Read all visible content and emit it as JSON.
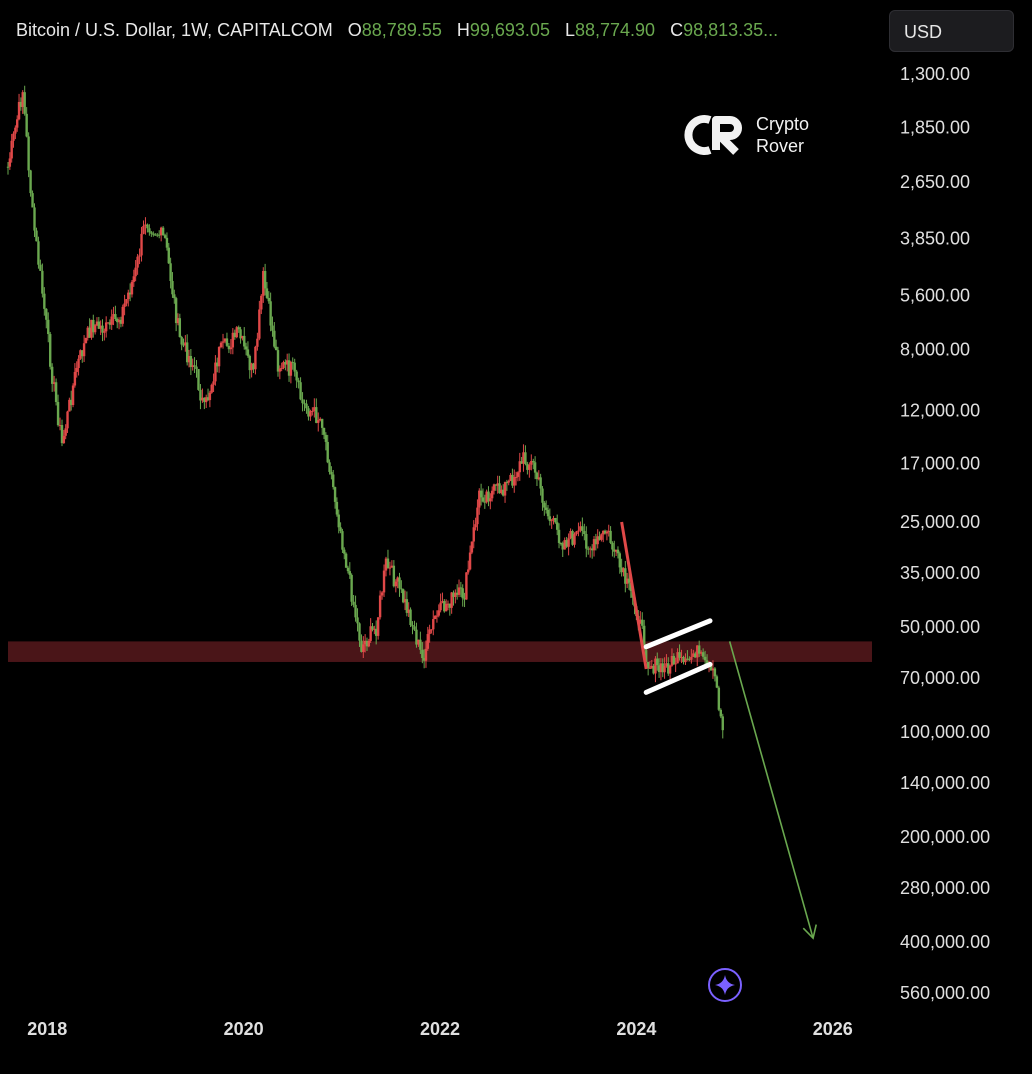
{
  "header": {
    "symbol": "Bitcoin / U.S. Dollar, 1W, CAPITALCOM",
    "open_label": "O",
    "open_value": "88,789.55",
    "high_label": "H",
    "high_value": "99,693.05",
    "low_label": "L",
    "low_value": "88,774.90",
    "close_label": "C",
    "close_value": "98,813.35..."
  },
  "currency_button": "USD",
  "watermark": {
    "line1": "Crypto",
    "line2": "Rover"
  },
  "colors": {
    "up": "#6aa84f",
    "down": "#e04848",
    "zone": "#4a1518",
    "arrow": "#6aa84f",
    "flag": "#ffffff"
  },
  "chart_data": {
    "type": "line",
    "x_axis": {
      "ticks": [
        "2018",
        "2020",
        "2022",
        "2024",
        "2026"
      ],
      "range": [
        2017.6,
        2026.4
      ]
    },
    "y_axis": {
      "scale": "log",
      "inverted": true,
      "ticks": [
        "1,300.00",
        "1,850.00",
        "2,650.00",
        "3,850.00",
        "5,600.00",
        "8,000.00",
        "12,000.00",
        "17,000.00",
        "25,000.00",
        "35,000.00",
        "50,000.00",
        "70,000.00",
        "100,000.00",
        "140,000.00",
        "200,000.00",
        "280,000.00",
        "400,000.00",
        "560,000.00"
      ],
      "range": [
        1300,
        560000
      ]
    },
    "series": [
      {
        "values": [
          [
            2017.6,
            2400
          ],
          [
            2017.75,
            1450
          ],
          [
            2017.85,
            3300
          ],
          [
            2017.95,
            5500
          ],
          [
            2018.05,
            9500
          ],
          [
            2018.15,
            15000
          ],
          [
            2018.3,
            9000
          ],
          [
            2018.45,
            6800
          ],
          [
            2018.6,
            7000
          ],
          [
            2018.75,
            6400
          ],
          [
            2018.9,
            4800
          ],
          [
            2019.0,
            3400
          ],
          [
            2019.2,
            3900
          ],
          [
            2019.35,
            7500
          ],
          [
            2019.5,
            9000
          ],
          [
            2019.6,
            12000
          ],
          [
            2019.75,
            8200
          ],
          [
            2019.95,
            7200
          ],
          [
            2020.1,
            9500
          ],
          [
            2020.2,
            5000
          ],
          [
            2020.35,
            8800
          ],
          [
            2020.5,
            9200
          ],
          [
            2020.6,
            11500
          ],
          [
            2020.8,
            12800
          ],
          [
            2020.95,
            23000
          ],
          [
            2021.1,
            40000
          ],
          [
            2021.2,
            57000
          ],
          [
            2021.35,
            50000
          ],
          [
            2021.45,
            33000
          ],
          [
            2021.55,
            37000
          ],
          [
            2021.7,
            47000
          ],
          [
            2021.82,
            62000
          ],
          [
            2021.95,
            47000
          ],
          [
            2022.1,
            42000
          ],
          [
            2022.25,
            40000
          ],
          [
            2022.4,
            21000
          ],
          [
            2022.55,
            20500
          ],
          [
            2022.7,
            19500
          ],
          [
            2022.85,
            16500
          ],
          [
            2022.95,
            17200
          ],
          [
            2023.1,
            24000
          ],
          [
            2023.25,
            28500
          ],
          [
            2023.45,
            27000
          ],
          [
            2023.55,
            30000
          ],
          [
            2023.7,
            26500
          ],
          [
            2023.85,
            35000
          ],
          [
            2024.0,
            44000
          ],
          [
            2024.12,
            63000
          ],
          [
            2024.25,
            67000
          ],
          [
            2024.4,
            62000
          ],
          [
            2024.5,
            65000
          ],
          [
            2024.6,
            58000
          ],
          [
            2024.7,
            65000
          ],
          [
            2024.8,
            70000
          ],
          [
            2024.88,
            98800
          ]
        ]
      }
    ],
    "annotations": [
      {
        "type": "zone",
        "value_range": [
          55000,
          63000
        ]
      },
      {
        "type": "flagpole",
        "from": [
          2023.85,
          25000
        ],
        "to": [
          2024.1,
          66000
        ]
      },
      {
        "type": "flag_upper",
        "from": [
          2024.1,
          57000
        ],
        "to": [
          2024.75,
          48000
        ]
      },
      {
        "type": "flag_lower",
        "from": [
          2024.1,
          77000
        ],
        "to": [
          2024.75,
          64000
        ]
      },
      {
        "type": "arrow",
        "from": [
          2024.95,
          55000
        ],
        "to": [
          2025.8,
          390000
        ]
      }
    ]
  }
}
